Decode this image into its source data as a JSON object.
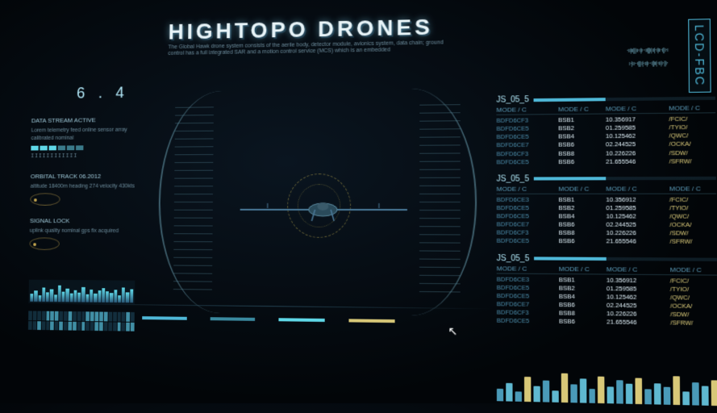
{
  "header": {
    "title": "HIGHTOPO DRONES",
    "subtitle": "The Global Hawk drone system consists of the aerile body, detector module, avionics system, data chain; ground control has a full integrated SAR and a motion control service (MCS) which is an embedded",
    "badge": "LCD-FBC"
  },
  "waveforms": {
    "w1": "·ıı|ıı|||ıı·ı|ı··ıı|||ı|ıı|·ı|ıı·ı||ı·ı",
    "w2": "ı·|ıı··ı|||ı|·ıı|ı··ı||ıı|·ıı|ı·||ı·"
  },
  "reading": {
    "value": "6 . 4"
  },
  "colors": {
    "accent": "#4fb8d8",
    "accent_bright": "#5fd8e8",
    "gold": "#d8c878",
    "ubar1": "#4fb8d8",
    "ubar2": "#3a8aa0",
    "ubar3": "#5fd8e8",
    "ubar4": "#d8c878"
  },
  "left": {
    "b1_title": "DATA STREAM ACTIVE",
    "b1_text": "Lorem telemetry feed online sensor array calibrated nominal",
    "barcode": "IIIIIIIIIIII",
    "b2_title": "ORBITAL TRACK 06.2012",
    "b2_text": "altitude 18400m heading 274 velocity 430kts",
    "b3_title": "SIGNAL LOCK",
    "b3_text": "uplink quality nominal gps fix acquired"
  },
  "spectrum_heights": [
    40,
    55,
    30,
    70,
    45,
    60,
    35,
    80,
    50,
    65,
    42,
    58,
    48,
    72,
    38,
    62,
    44,
    56,
    68,
    52,
    46,
    60,
    36,
    74,
    50,
    64
  ],
  "table_header": "JS_05_5",
  "table_cols": [
    "MODE / C",
    "MODE / C",
    "MODE / C",
    "MODE / C"
  ],
  "tables": [
    {
      "rows": [
        [
          "BDFD6CF3",
          "BSB1",
          "10.356917",
          "/FCIC/"
        ],
        [
          "BDFD6CE5",
          "BSB2",
          "01.259585",
          "/TYIO/"
        ],
        [
          "BDFD6CE5",
          "BSB4",
          "10.125462",
          "/QWC/"
        ],
        [
          "BDFD6CE7",
          "BSB6",
          "02.244525",
          "/OCKA/"
        ],
        [
          "BDFD6CF3",
          "BSB8",
          "10.226226",
          "/SDW/"
        ],
        [
          "BDFD6CE5",
          "BSB6",
          "21.655546",
          "/SFRW/"
        ]
      ]
    },
    {
      "rows": [
        [
          "BDFD6CE3",
          "BSB1",
          "10.356912",
          "/FCIC/"
        ],
        [
          "BDFD6CE5",
          "BSB2",
          "01.259585",
          "/TYIO/"
        ],
        [
          "BDFD6CE5",
          "BSB4",
          "10.125462",
          "/QWC/"
        ],
        [
          "BDFD6CE7",
          "BSB6",
          "02.244525",
          "/OCKA/"
        ],
        [
          "BDFD6CF3",
          "BSB8",
          "10.226226",
          "/SDW/"
        ],
        [
          "BDFD6CE5",
          "BSB6",
          "21.655546",
          "/SFRW/"
        ]
      ]
    },
    {
      "rows": [
        [
          "BDFD6CE3",
          "BSB1",
          "10.356912",
          "/FCIC/"
        ],
        [
          "BDFD6CE5",
          "BSB2",
          "01.259585",
          "/TYIO/"
        ],
        [
          "BDFD6CE5",
          "BSB4",
          "10.125462",
          "/QWC/"
        ],
        [
          "BDFD6CE7",
          "BSB6",
          "02.244525",
          "/OCKA/"
        ],
        [
          "BDFD6CF3",
          "BSB8",
          "10.226226",
          "/SDW/"
        ],
        [
          "BDFD6CE5",
          "BSB6",
          "21.655546",
          "/SFRW/"
        ]
      ]
    }
  ],
  "bottom_bars": {
    "heights": [
      30,
      45,
      25,
      60,
      38,
      52,
      28,
      70,
      44,
      58,
      34,
      64,
      40,
      56,
      48,
      62,
      36,
      50,
      42,
      68,
      32,
      54,
      46,
      60
    ],
    "colors": [
      "#4a9ab8",
      "#5fb8d0",
      "#4a9ab8",
      "#d8c878",
      "#5fb8d0",
      "#4a9ab8",
      "#5fb8d0",
      "#d8c878",
      "#4a9ab8",
      "#5fb8d0",
      "#4a9ab8",
      "#d8c878",
      "#5fb8d0",
      "#4a9ab8",
      "#5fb8d0",
      "#d8c878",
      "#4a9ab8",
      "#5fb8d0",
      "#4a9ab8",
      "#d8c878",
      "#5fb8d0",
      "#4a9ab8",
      "#5fb8d0",
      "#d8c878"
    ]
  }
}
